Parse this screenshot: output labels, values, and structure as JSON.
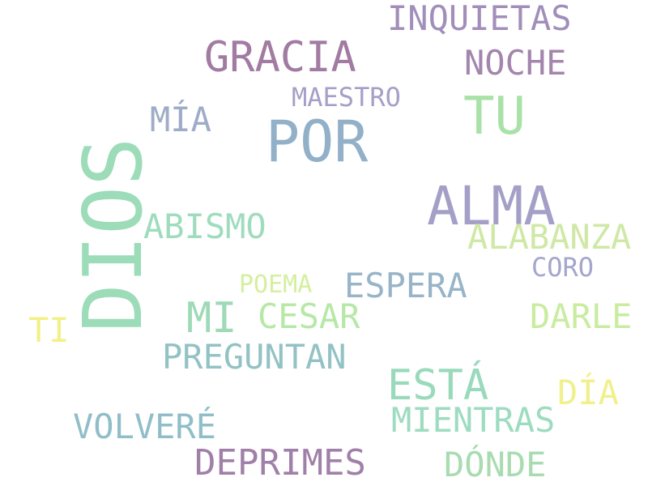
{
  "words": [
    {
      "text": "INQUIETAS",
      "color": "#a18fba"
    },
    {
      "text": "GRACIA",
      "color": "#a17ba2"
    },
    {
      "text": "NOCHE",
      "color": "#a385ad"
    },
    {
      "text": "MAESTRO",
      "color": "#a5a0c8"
    },
    {
      "text": "TU",
      "color": "#a8e2a8"
    },
    {
      "text": "MÍA",
      "color": "#9eacc8"
    },
    {
      "text": "POR",
      "color": "#92b0c8"
    },
    {
      "text": "ALMA",
      "color": "#a49fc6"
    },
    {
      "text": "ABISMO",
      "color": "#9fdcbe"
    },
    {
      "text": "ALABANZA",
      "color": "#cfe8a6"
    },
    {
      "text": "CORO",
      "color": "#a4a6cc"
    },
    {
      "text": "POEMA",
      "color": "#d4ef9e"
    },
    {
      "text": "ESPERA",
      "color": "#97b4c8"
    },
    {
      "text": "MI",
      "color": "#9edab6"
    },
    {
      "text": "CESAR",
      "color": "#b6e8a6"
    },
    {
      "text": "DARLE",
      "color": "#c9eca0"
    },
    {
      "text": "TI",
      "color": "#f3f08a"
    },
    {
      "text": "PREGUNTAN",
      "color": "#93c2c4"
    },
    {
      "text": "ESTÁ",
      "color": "#9adabc"
    },
    {
      "text": "DÍA",
      "color": "#f0f08c"
    },
    {
      "text": "MIENTRAS",
      "color": "#9ddcc0"
    },
    {
      "text": "VOLVERÉ",
      "color": "#90bec8"
    },
    {
      "text": "DEPRIMES",
      "color": "#a080a8"
    },
    {
      "text": "DÓNDE",
      "color": "#a8dcb0"
    }
  ],
  "vertical_word": {
    "text": "DIOS",
    "color": "#9cdcb8"
  }
}
